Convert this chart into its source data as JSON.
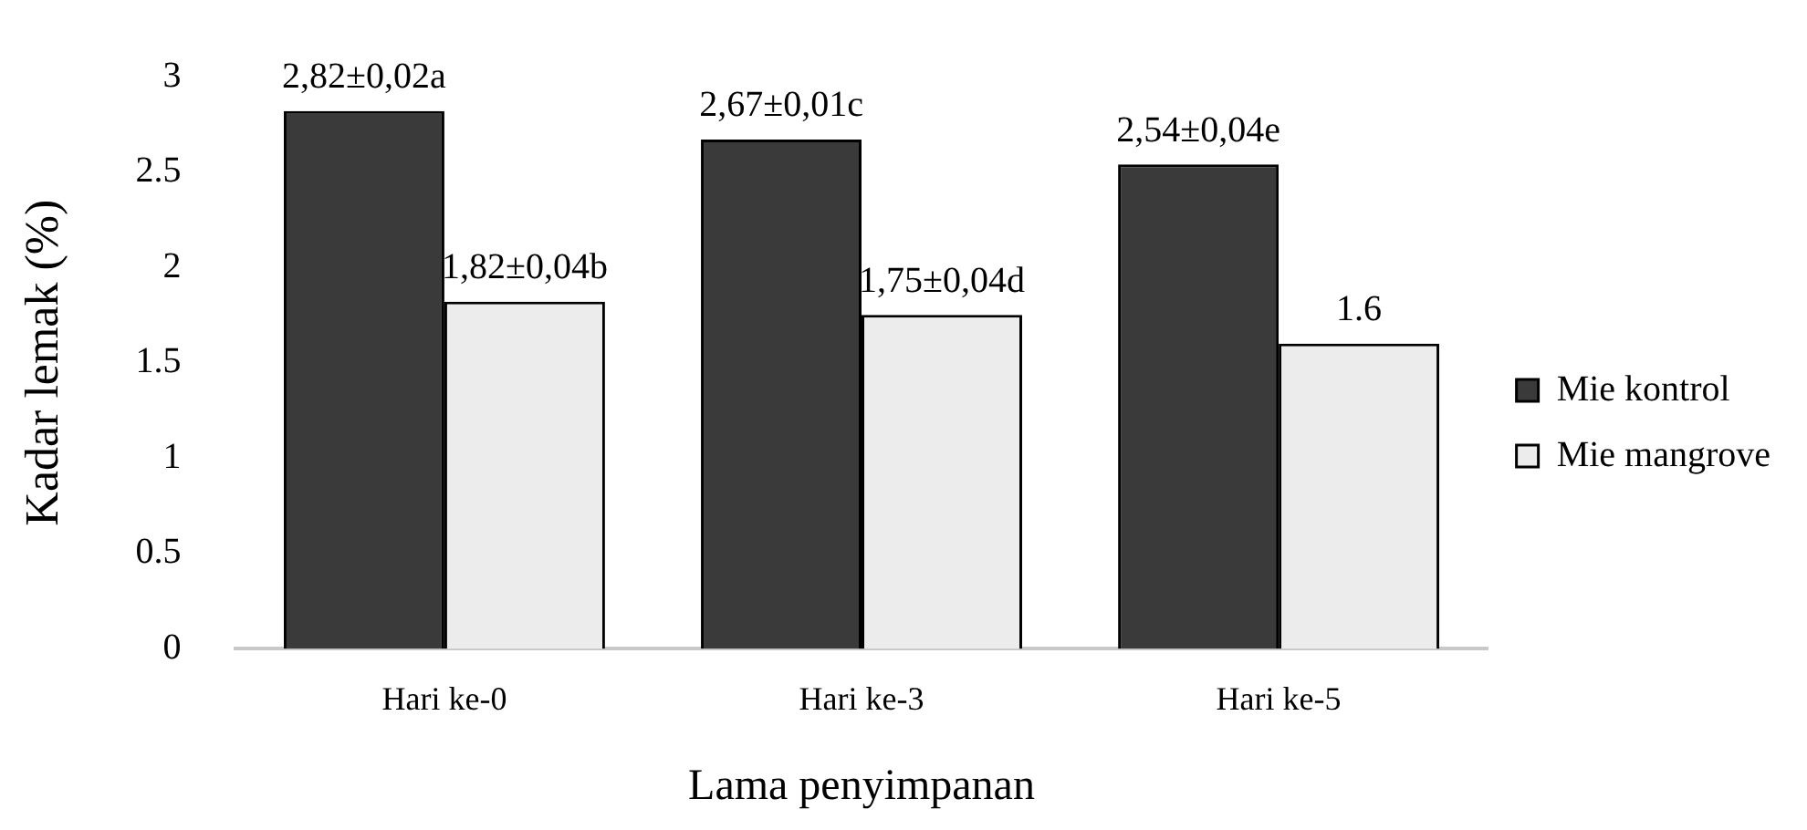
{
  "chart_data": {
    "type": "bar",
    "xlabel": "Lama penyimpanan",
    "ylabel": "Kadar lemak (%)",
    "categories": [
      "Hari ke-0",
      "Hari ke-3",
      "Hari ke-5"
    ],
    "series": [
      {
        "name": "Mie kontrol",
        "color": "#3a3a3a",
        "values": [
          2.82,
          2.67,
          2.54
        ],
        "value_labels": [
          "2,82±0,02a",
          "2,67±0,01c",
          "2,54±0,04e"
        ]
      },
      {
        "name": "Mie mangrove",
        "color": "#ececec",
        "values": [
          1.82,
          1.75,
          1.6
        ],
        "value_labels": [
          "1,82±0,04b",
          "1,75±0,04d",
          "1.6"
        ]
      }
    ],
    "ylim": [
      0,
      3
    ],
    "yticks": [
      0,
      0.5,
      1,
      1.5,
      2,
      2.5,
      3
    ],
    "grid": false,
    "legend": "right"
  }
}
